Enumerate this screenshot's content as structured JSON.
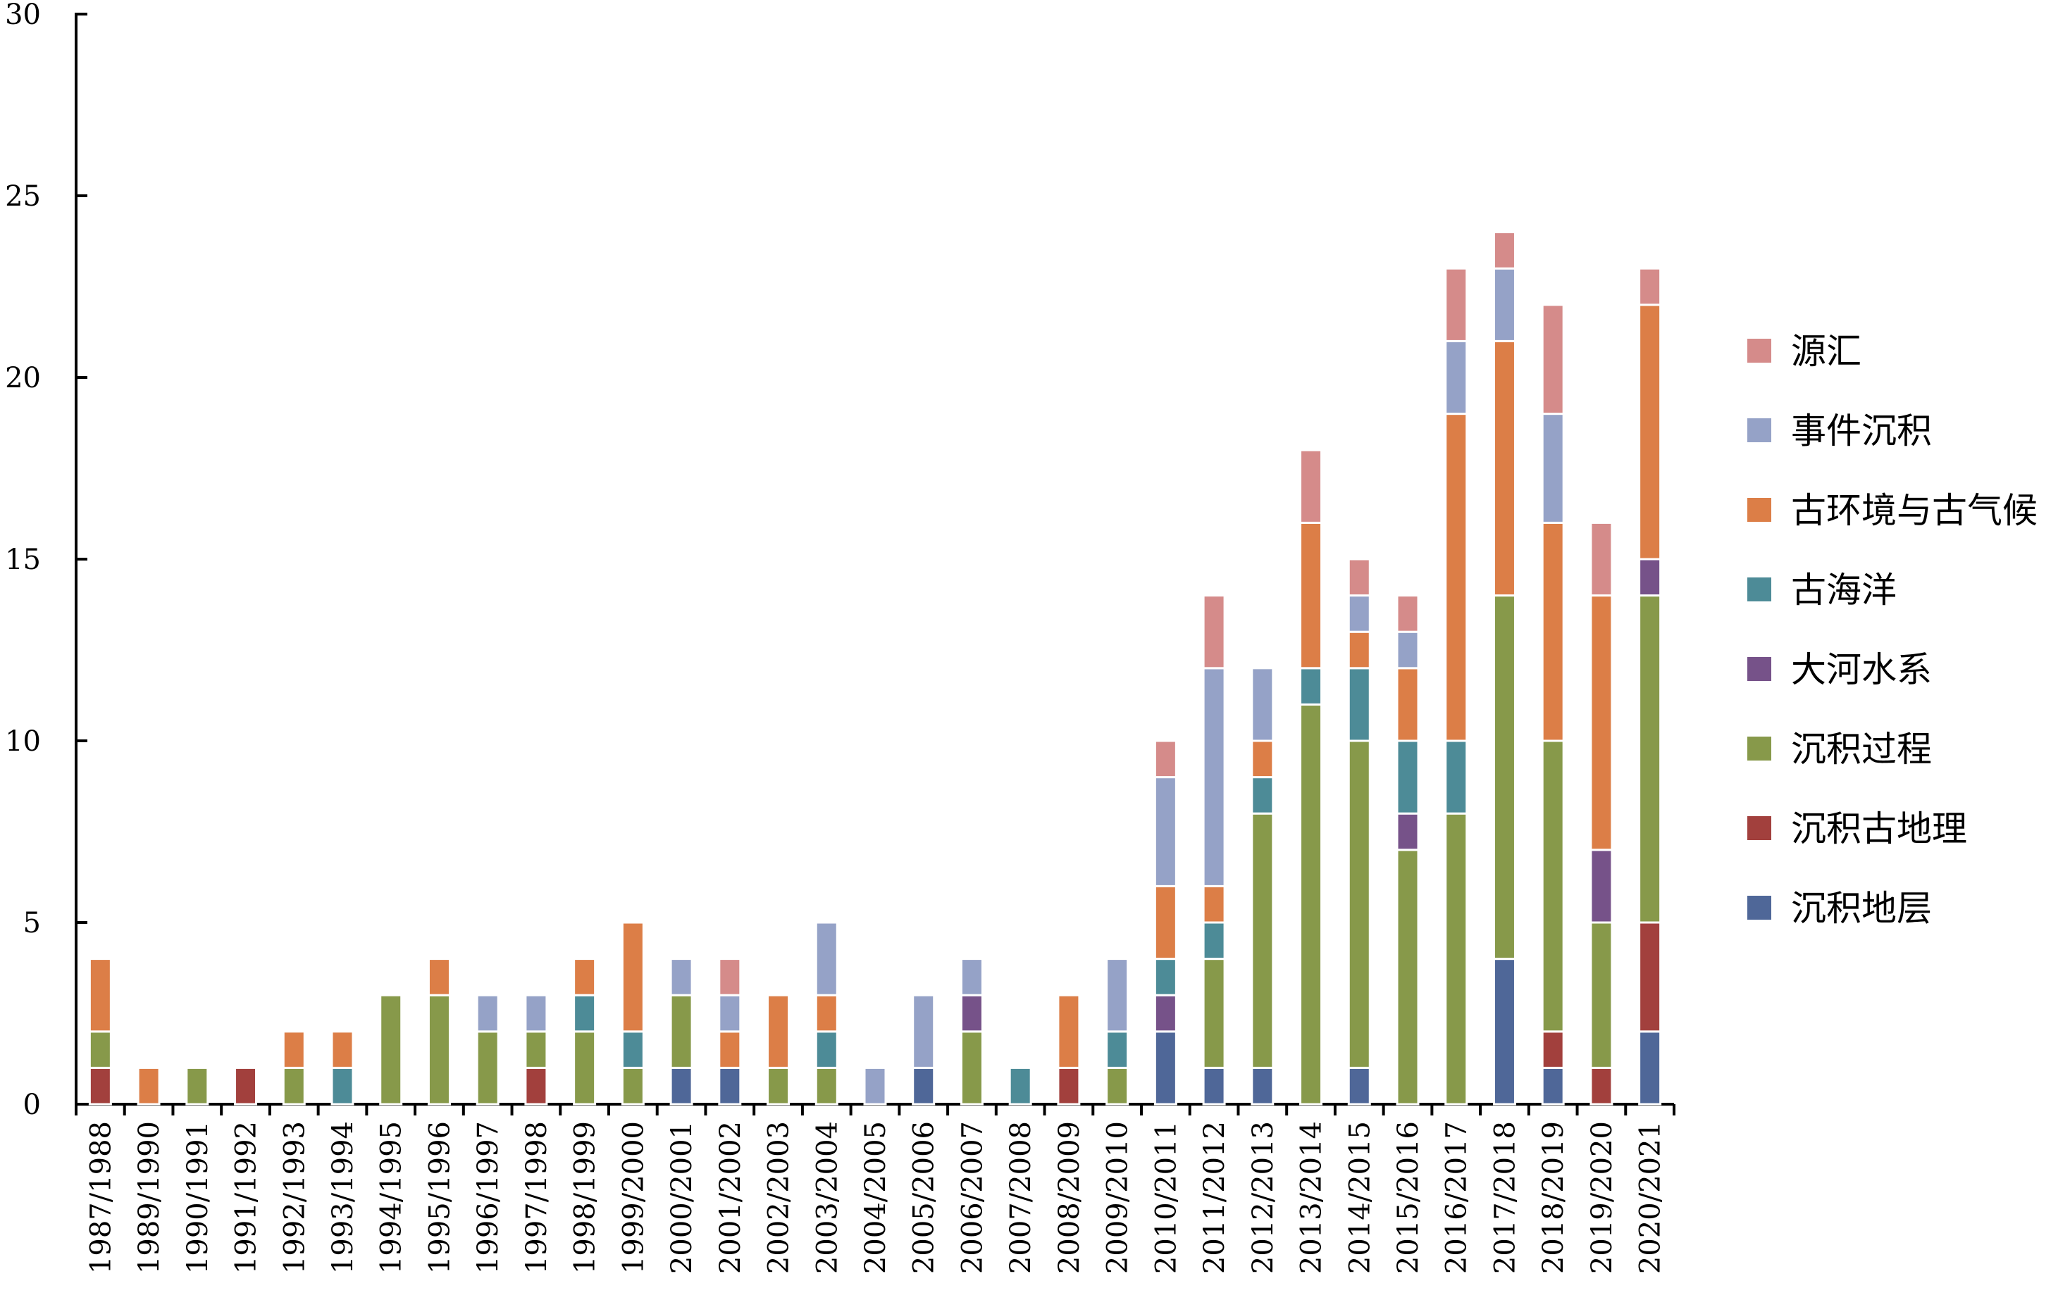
{
  "chart_data": {
    "type": "bar",
    "stacked": true,
    "title": "",
    "xlabel": "",
    "ylabel": "",
    "ylim": [
      0,
      30
    ],
    "yticks": [
      0,
      5,
      10,
      15,
      20,
      25,
      30
    ],
    "grid": false,
    "legend_position": "right",
    "categories": [
      "1987/1988",
      "1989/1990",
      "1990/1991",
      "1991/1992",
      "1992/1993",
      "1993/1994",
      "1994/1995",
      "1995/1996",
      "1996/1997",
      "1997/1998",
      "1998/1999",
      "1999/2000",
      "2000/2001",
      "2001/2002",
      "2002/2003",
      "2003/2004",
      "2004/2005",
      "2005/2006",
      "2006/2007",
      "2007/2008",
      "2008/2009",
      "2009/2010",
      "2010/2011",
      "2011/2012",
      "2012/2013",
      "2013/2014",
      "2014/2015",
      "2015/2016",
      "2016/2017",
      "2017/2018",
      "2018/2019",
      "2019/2020",
      "2020/2021"
    ],
    "series": [
      {
        "name": "沉积地层",
        "color": "#4f6798",
        "values": [
          0,
          0,
          0,
          0,
          0,
          0,
          0,
          0,
          0,
          0,
          0,
          0,
          1,
          1,
          0,
          0,
          0,
          1,
          0,
          0,
          0,
          0,
          2,
          1,
          1,
          0,
          1,
          0,
          0,
          4,
          1,
          0,
          2
        ]
      },
      {
        "name": "沉积古地理",
        "color": "#a2403d",
        "values": [
          1,
          0,
          0,
          1,
          0,
          0,
          0,
          0,
          0,
          1,
          0,
          0,
          0,
          0,
          0,
          0,
          0,
          0,
          0,
          0,
          1,
          0,
          0,
          0,
          0,
          0,
          0,
          0,
          0,
          0,
          1,
          1,
          3
        ]
      },
      {
        "name": "沉积过程",
        "color": "#87994a",
        "values": [
          1,
          0,
          1,
          0,
          1,
          0,
          3,
          3,
          2,
          1,
          2,
          1,
          2,
          0,
          1,
          1,
          0,
          0,
          2,
          0,
          0,
          1,
          0,
          3,
          7,
          11,
          9,
          7,
          8,
          10,
          8,
          4,
          9
        ]
      },
      {
        "name": "大河水系",
        "color": "#765289",
        "values": [
          0,
          0,
          0,
          0,
          0,
          0,
          0,
          0,
          0,
          0,
          0,
          0,
          0,
          0,
          0,
          0,
          0,
          0,
          1,
          0,
          0,
          0,
          1,
          0,
          0,
          0,
          0,
          1,
          0,
          0,
          0,
          2,
          1
        ]
      },
      {
        "name": "古海洋",
        "color": "#4d8b97",
        "values": [
          0,
          0,
          0,
          0,
          0,
          1,
          0,
          0,
          0,
          0,
          1,
          1,
          0,
          0,
          0,
          1,
          0,
          0,
          0,
          1,
          0,
          1,
          1,
          1,
          1,
          1,
          2,
          2,
          2,
          0,
          0,
          0,
          0
        ]
      },
      {
        "name": "古环境与古气候",
        "color": "#dc7e47",
        "values": [
          2,
          1,
          0,
          0,
          1,
          1,
          0,
          1,
          0,
          0,
          1,
          3,
          0,
          1,
          2,
          1,
          0,
          0,
          0,
          0,
          2,
          0,
          2,
          1,
          1,
          4,
          1,
          2,
          9,
          7,
          6,
          7,
          7
        ]
      },
      {
        "name": "事件沉积",
        "color": "#95a2c7",
        "values": [
          0,
          0,
          0,
          0,
          0,
          0,
          0,
          0,
          1,
          1,
          0,
          0,
          1,
          1,
          0,
          2,
          1,
          2,
          1,
          0,
          0,
          2,
          3,
          6,
          2,
          0,
          1,
          1,
          2,
          2,
          3,
          0,
          0
        ]
      },
      {
        "name": "源汇",
        "color": "#d58b8a",
        "values": [
          0,
          0,
          0,
          0,
          0,
          0,
          0,
          0,
          0,
          0,
          0,
          0,
          0,
          1,
          0,
          0,
          0,
          0,
          0,
          0,
          0,
          0,
          1,
          2,
          0,
          2,
          1,
          1,
          2,
          1,
          3,
          2,
          1
        ]
      }
    ]
  }
}
